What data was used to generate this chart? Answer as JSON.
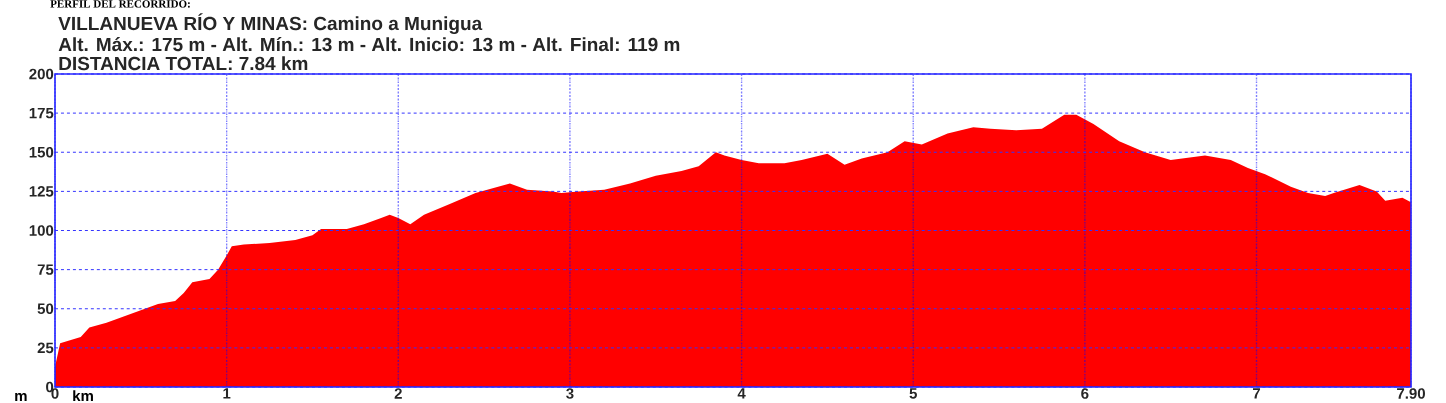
{
  "chart_data": {
    "type": "area",
    "title": "VILLANUEVA RÍO Y MINAS: Camino a Munigua",
    "subtitle": "Alt. Máx.: 175 m - Alt. Mín.: 13 m - Alt. Inicio: 13 m - Alt. Final: 119 m",
    "annotations": [
      "PERFIL DEL RECORRIDO:",
      "DISTANCIA TOTAL: 7.84 km"
    ],
    "xlabel": "km",
    "ylabel": "m",
    "xlim": [
      0,
      7.9
    ],
    "ylim": [
      0,
      200
    ],
    "xticks": [
      0,
      1,
      2,
      3,
      4,
      5,
      6,
      7,
      {
        "value": 7.9,
        "label": "7.90"
      }
    ],
    "yticks": [
      0,
      25,
      50,
      75,
      100,
      125,
      150,
      175,
      200
    ],
    "grid": true,
    "series": [
      {
        "color": "#ff0000",
        "x": [
          0,
          0.03,
          0.15,
          0.2,
          0.3,
          0.4,
          0.5,
          0.6,
          0.7,
          0.75,
          0.8,
          0.9,
          0.95,
          1.0,
          1.03,
          1.1,
          1.25,
          1.4,
          1.5,
          1.55,
          1.7,
          1.8,
          1.9,
          1.95,
          2.0,
          2.07,
          2.15,
          2.3,
          2.45,
          2.55,
          2.65,
          2.75,
          2.9,
          2.95,
          3.05,
          3.2,
          3.35,
          3.5,
          3.65,
          3.75,
          3.85,
          3.9,
          4.0,
          4.1,
          4.25,
          4.35,
          4.5,
          4.6,
          4.7,
          4.85,
          4.95,
          5.05,
          5.2,
          5.35,
          5.45,
          5.6,
          5.75,
          5.88,
          5.95,
          6.05,
          6.2,
          6.35,
          6.5,
          6.7,
          6.85,
          6.95,
          7.05,
          7.2,
          7.3,
          7.4,
          7.45,
          7.6,
          7.7,
          7.75,
          7.85,
          7.9
        ],
        "values": [
          13,
          28,
          32,
          38,
          41,
          45,
          49,
          53,
          55,
          60,
          67,
          69,
          75,
          84,
          90,
          91,
          92,
          94,
          97,
          101,
          101,
          104,
          108,
          110,
          108,
          104,
          110,
          117,
          124,
          127,
          130,
          126,
          125,
          124,
          125,
          126,
          130,
          135,
          138,
          141,
          150,
          148,
          145,
          143,
          143,
          145,
          149,
          142,
          146,
          150,
          157,
          155,
          162,
          166,
          165,
          164,
          165,
          174,
          174,
          168,
          157,
          150,
          145,
          148,
          145,
          140,
          136,
          128,
          124,
          122,
          124,
          129,
          125,
          119,
          121,
          118
        ]
      }
    ]
  }
}
